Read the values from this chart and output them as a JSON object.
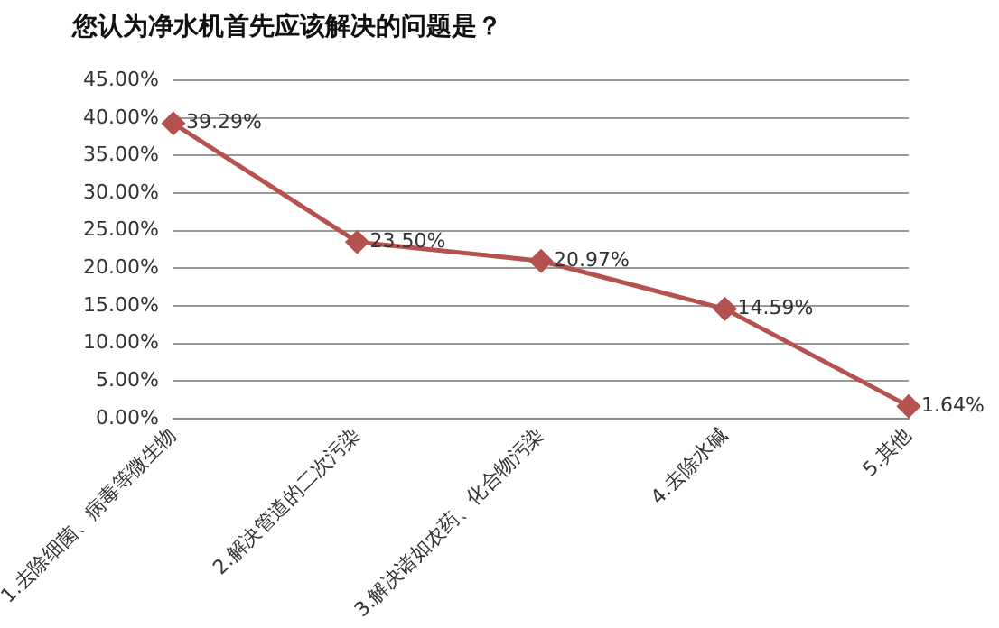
{
  "chart_data": {
    "type": "line",
    "title": "您认为净水机首先应该解决的问题是？",
    "categories": [
      "1.去除细菌、病毒等微生物",
      "2.解决管道的二次污染",
      "3.解决诸如农药、化合物污染",
      "4.去除水碱",
      "5.其他"
    ],
    "series": [
      {
        "color": "#b5524f",
        "values": [
          39.29,
          23.5,
          20.97,
          14.59,
          1.64
        ],
        "value_labels": [
          "39.29%",
          "23.50%",
          "20.97%",
          "14.59%",
          "1.64%"
        ]
      }
    ],
    "ylim": [
      0,
      45
    ],
    "yticks": [
      {
        "value": 0,
        "label": "0.00%"
      },
      {
        "value": 5,
        "label": "5.00%"
      },
      {
        "value": 10,
        "label": "10.00%"
      },
      {
        "value": 15,
        "label": "15.00%"
      },
      {
        "value": 20,
        "label": "20.00%"
      },
      {
        "value": 25,
        "label": "25.00%"
      },
      {
        "value": 30,
        "label": "30.00%"
      },
      {
        "value": 35,
        "label": "35.00%"
      },
      {
        "value": 40,
        "label": "40.00%"
      },
      {
        "value": 45,
        "label": "45.00%"
      }
    ],
    "grid": "y",
    "legend": false,
    "marker": "diamond",
    "line_style": "solid"
  }
}
